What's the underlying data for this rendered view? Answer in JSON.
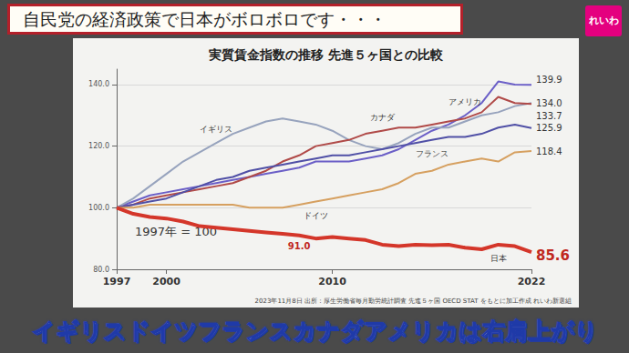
{
  "banner": "自民党の経済政策で日本がボロボロです・・・",
  "logo": "れいわ",
  "caption": "イギリスドイツフランスカナダアメリカは右肩上がり",
  "chart_data": {
    "type": "line",
    "title": "実質賃金指数の推移 先進５ヶ国との比較",
    "annotations": [
      "1997年 = 100",
      "2023年11月8日 出所：厚生労働省毎月勤労統計調査 先進５ヶ国 OECD STAT をもとに加工作成 れいわ新選組"
    ],
    "x": [
      1997,
      1998,
      1999,
      2000,
      2001,
      2002,
      2003,
      2004,
      2005,
      2006,
      2007,
      2008,
      2009,
      2010,
      2011,
      2012,
      2013,
      2014,
      2015,
      2016,
      2017,
      2018,
      2019,
      2020,
      2021,
      2022
    ],
    "xlim": [
      1997,
      2022
    ],
    "xticks": [
      1997,
      2000,
      2010,
      2022
    ],
    "ylim": [
      80,
      145
    ],
    "yticks": [
      {
        "value": 80,
        "label": "80.0"
      },
      {
        "value": 100,
        "label": "100.0"
      },
      {
        "value": 120,
        "label": "120.0"
      },
      {
        "value": 140,
        "label": "140.0"
      }
    ],
    "grid": true,
    "series": [
      {
        "name": "アメリカ",
        "color": "#6b5fc7",
        "values": [
          100,
          102,
          104,
          105,
          106,
          107,
          108,
          109,
          110,
          111,
          112,
          113,
          115,
          115,
          115,
          116,
          117,
          119,
          122,
          125,
          127,
          130,
          134,
          141,
          140,
          139.9
        ],
        "value_labels": [
          null,
          null,
          null,
          null,
          null,
          null,
          null,
          null,
          null,
          null,
          null,
          null,
          null,
          null,
          null,
          null,
          null,
          null,
          null,
          null,
          null,
          null,
          null,
          null,
          null,
          "139.9"
        ]
      },
      {
        "name": "イギリス",
        "color": "#97a3bd",
        "values": [
          100,
          103,
          107,
          111,
          115,
          118,
          121,
          124,
          126,
          128,
          129,
          128,
          127,
          125,
          122,
          120,
          119,
          121,
          124,
          126,
          126,
          128,
          130,
          131,
          133,
          134.0
        ],
        "value_labels": [
          null,
          null,
          null,
          null,
          null,
          null,
          null,
          null,
          null,
          null,
          null,
          null,
          null,
          null,
          null,
          null,
          null,
          null,
          null,
          null,
          null,
          null,
          null,
          null,
          null,
          "134.0"
        ]
      },
      {
        "name": "カナダ",
        "color": "#b04a48",
        "values": [
          100,
          101,
          103,
          104,
          105,
          106,
          107,
          108,
          110,
          112,
          115,
          117,
          120,
          121,
          122,
          124,
          125,
          126,
          126,
          127,
          128,
          129,
          131,
          136,
          134,
          133.7
        ],
        "value_labels": [
          null,
          null,
          null,
          null,
          null,
          null,
          null,
          null,
          null,
          null,
          null,
          null,
          null,
          null,
          null,
          null,
          null,
          null,
          null,
          null,
          null,
          null,
          null,
          null,
          null,
          "133.7"
        ]
      },
      {
        "name": "フランス",
        "color": "#5050a6",
        "values": [
          100,
          101,
          102,
          103,
          105,
          107,
          109,
          110,
          112,
          113,
          114,
          115,
          116,
          117,
          117,
          118,
          119,
          120,
          121,
          122,
          123,
          123,
          124,
          126,
          127,
          125.9
        ],
        "value_labels": [
          null,
          null,
          null,
          null,
          null,
          null,
          null,
          null,
          null,
          null,
          null,
          null,
          null,
          null,
          null,
          null,
          null,
          null,
          null,
          null,
          null,
          null,
          null,
          null,
          null,
          "125.9"
        ]
      },
      {
        "name": "ドイツ",
        "color": "#d6a060",
        "values": [
          100,
          100,
          101,
          101,
          101,
          101,
          101,
          101,
          100,
          100,
          100,
          101,
          102,
          103,
          104,
          105,
          106,
          108,
          111,
          112,
          114,
          115,
          116,
          115,
          118,
          118.4
        ],
        "value_labels": [
          null,
          null,
          null,
          null,
          null,
          null,
          null,
          null,
          null,
          null,
          null,
          null,
          null,
          null,
          null,
          null,
          null,
          null,
          null,
          null,
          null,
          null,
          null,
          null,
          null,
          "118.4"
        ]
      },
      {
        "name": "日本",
        "color": "#d4362a",
        "values": [
          100,
          98,
          97,
          96.5,
          95.5,
          94,
          93.5,
          93,
          92.5,
          92,
          91.5,
          91.0,
          90,
          90.5,
          90,
          89.5,
          88,
          87.5,
          88,
          87.8,
          88,
          87,
          86.5,
          88,
          87.5,
          85.6
        ],
        "value_labels": [
          null,
          null,
          null,
          null,
          null,
          null,
          null,
          null,
          null,
          null,
          null,
          "91.0",
          null,
          null,
          null,
          null,
          null,
          null,
          null,
          null,
          null,
          null,
          null,
          null,
          null,
          "85.6"
        ]
      }
    ]
  }
}
